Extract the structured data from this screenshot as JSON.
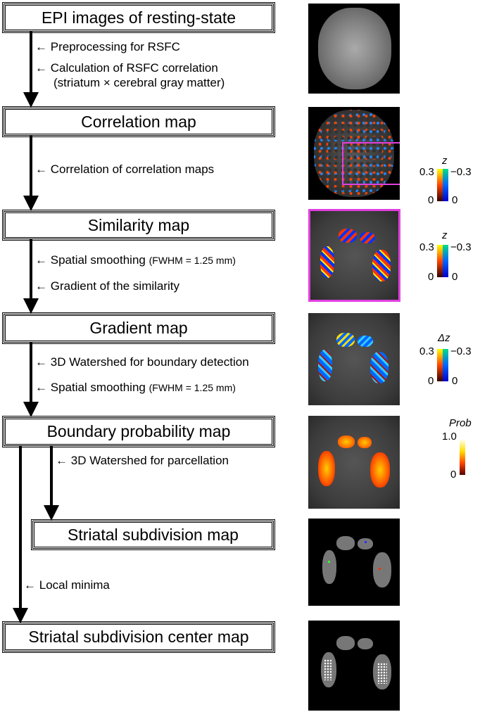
{
  "boxes": {
    "epi": "EPI images of resting-state",
    "correlation": "Correlation map",
    "similarity": "Similarity map",
    "gradient": "Gradient map",
    "boundary": "Boundary probability map",
    "subdivision": "Striatal subdivision map",
    "center": "Striatal subdivision center map"
  },
  "steps": {
    "s1": "Preprocessing for RSFC",
    "s2a": "Calculation of RSFC correlation",
    "s2b": "(striatum × cerebral gray matter)",
    "s3": "Correlation of correlation maps",
    "s4": "Spatial smoothing",
    "s4b": "(FWHM = 1.25 mm)",
    "s5": "Gradient of the similarity",
    "s6": "3D Watershed for boundary detection",
    "s7": "Spatial smoothing",
    "s7b": "(FWHM = 1.25 mm)",
    "s8": "3D Watershed for parcellation",
    "s9": "Local minima"
  },
  "colorbars": {
    "corr": {
      "title": "z",
      "pos_max": "0.3",
      "neg_max": "−0.3",
      "zero_l": "0",
      "zero_r": "0"
    },
    "sim": {
      "title": "z",
      "pos_max": "0.3",
      "neg_max": "−0.3",
      "zero_l": "0",
      "zero_r": "0"
    },
    "grad": {
      "title": "Δz",
      "pos_max": "0.3",
      "neg_max": "−0.3",
      "zero_l": "0",
      "zero_r": "0"
    },
    "prob": {
      "title": "Prob",
      "max": "1.0",
      "min": "0"
    }
  },
  "colors": {
    "highlight": "#e040e0",
    "hot": "#ff3000",
    "cool": "#0040ff"
  }
}
